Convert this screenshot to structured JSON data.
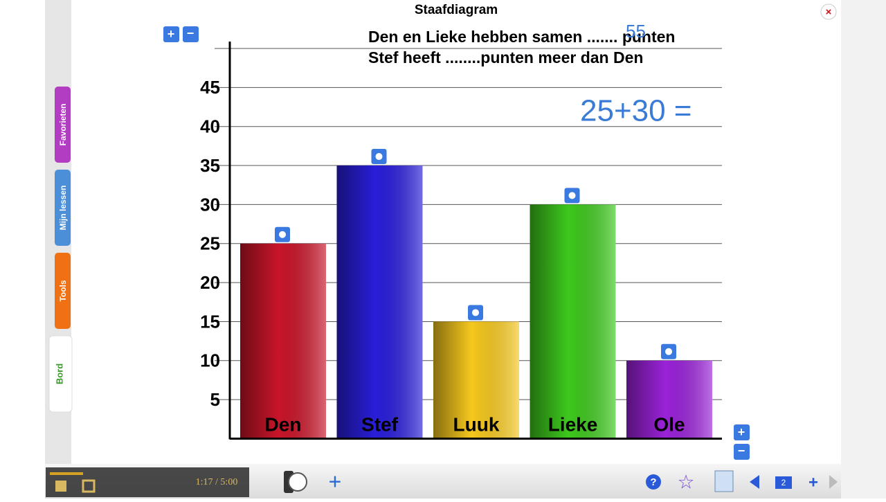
{
  "window": {
    "title": "Staafdiagram"
  },
  "side_tabs": [
    "Favorieten",
    "Mijn lessen",
    "Tools",
    "Bord"
  ],
  "question": {
    "line1": "Den en Lieke hebben samen ....... punten",
    "line2": "Stef heeft ........punten meer dan Den"
  },
  "handwriting": {
    "answer": "55",
    "sum": "25+30 ="
  },
  "player": {
    "time": "1:17 / 5:00"
  },
  "toolbar": {
    "page": "2"
  },
  "chart_data": {
    "type": "bar",
    "categories": [
      "Den",
      "Stef",
      "Luuk",
      "Lieke",
      "Ole"
    ],
    "values": [
      25,
      35,
      15,
      30,
      10
    ],
    "colors": [
      "#c8152a",
      "#2a1ed8",
      "#f6c81e",
      "#3ec81e",
      "#9a22d8"
    ],
    "ylim": [
      0,
      50
    ],
    "yticks": [
      5,
      10,
      15,
      20,
      25,
      30,
      35,
      40,
      45
    ],
    "grid": true
  }
}
